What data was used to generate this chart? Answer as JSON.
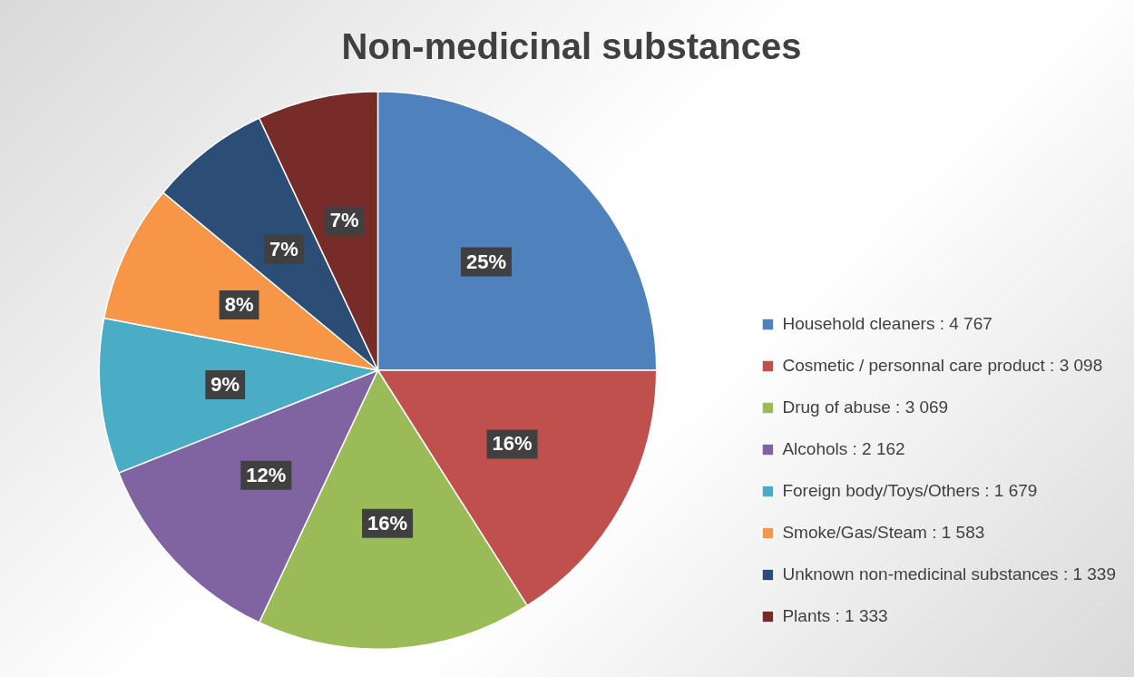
{
  "chart_data": {
    "type": "pie",
    "title": "Non-medicinal substances",
    "categories": [
      "Household cleaners : 4 767",
      "Cosmetic / personnal care product : 3 098",
      "Drug of abuse : 3 069",
      "Alcohols : 2 162",
      "Foreign body/Toys/Others : 1 679",
      "Smoke/Gas/Steam : 1 583",
      "Unknown non-medicinal substances : 1 339",
      "Plants : 1 333"
    ],
    "values": [
      25,
      16,
      16,
      12,
      9,
      8,
      7,
      7
    ],
    "colors": [
      "#4f81bd",
      "#c0504d",
      "#9bbb59",
      "#8064a2",
      "#4bacc6",
      "#f79646",
      "#2c4d75",
      "#772c2a"
    ],
    "value_labels": [
      "25%",
      "16%",
      "16%",
      "12%",
      "9%",
      "8%",
      "7%",
      "7%"
    ],
    "legend": "bottom right"
  }
}
